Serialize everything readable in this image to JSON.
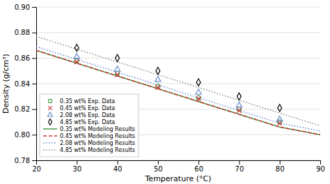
{
  "chart_data": {
    "type": "line",
    "xlabel": "Temperature (°C)",
    "ylabel": "Density (g/cm³)",
    "xlim": [
      20,
      90
    ],
    "ylim": [
      0.78,
      0.9
    ],
    "xticks": [
      20,
      30,
      40,
      50,
      60,
      70,
      80,
      90
    ],
    "yticks": [
      0.78,
      {
        "value": 0.8,
        "label": "0.80"
      },
      0.82,
      0.84,
      0.86,
      0.88,
      {
        "value": 0.9,
        "label": "0.90"
      }
    ],
    "grid": true,
    "legend": "lower left",
    "series": [
      {
        "name": "0.35 wt% Exp. Data",
        "type": "scatter",
        "marker": "circle",
        "color": "#4a9c4a",
        "x": [
          30,
          40,
          50,
          60,
          70,
          80
        ],
        "values": [
          0.858,
          0.848,
          0.838,
          0.829,
          0.82,
          0.81
        ]
      },
      {
        "name": "0.45 wt% Exp. Data",
        "type": "scatter",
        "marker": "x",
        "color": "#cc3333",
        "x": [
          30,
          40,
          50,
          60,
          70,
          80
        ],
        "values": [
          0.857,
          0.847,
          0.837,
          0.828,
          0.819,
          0.809
        ]
      },
      {
        "name": "2.08 wt% Exp. Data",
        "type": "scatter",
        "marker": "triangle",
        "color": "#6688cc",
        "x": [
          30,
          40,
          50,
          60,
          70,
          80
        ],
        "values": [
          0.861,
          0.851,
          0.843,
          0.833,
          0.823,
          0.812
        ]
      },
      {
        "name": "4.85 wt% Exp. Data",
        "type": "scatter",
        "marker": "diamond",
        "color": "#000000",
        "x": [
          30,
          40,
          50,
          60,
          70,
          80
        ],
        "values": [
          0.868,
          0.86,
          0.85,
          0.841,
          0.83,
          0.821
        ]
      },
      {
        "name": "0.35 wt% Modeling Results",
        "type": "line",
        "line_style": "solid",
        "color": "#4a9c4a",
        "x": [
          20,
          30,
          40,
          50,
          60,
          70,
          80,
          90
        ],
        "values": [
          0.866,
          0.856,
          0.846,
          0.836,
          0.826,
          0.816,
          0.806,
          0.8
        ]
      },
      {
        "name": "0.45 wt% Modeling Results",
        "type": "line",
        "line_style": "dashed",
        "color": "#cc3333",
        "x": [
          20,
          30,
          40,
          50,
          60,
          70,
          80,
          90
        ],
        "values": [
          0.866,
          0.856,
          0.846,
          0.836,
          0.826,
          0.816,
          0.806,
          0.8
        ]
      },
      {
        "name": "2.08 wt% Modeling Results",
        "type": "line",
        "line_style": "dotted",
        "color": "#6688cc",
        "x": [
          20,
          30,
          40,
          50,
          60,
          70,
          80,
          90
        ],
        "values": [
          0.869,
          0.859,
          0.849,
          0.839,
          0.829,
          0.819,
          0.809,
          0.803
        ]
      },
      {
        "name": "4.85 wt% Modeling Results",
        "type": "line",
        "line_style": "dotted",
        "color": "#888888",
        "x": [
          20,
          30,
          40,
          50,
          60,
          70,
          80,
          90
        ],
        "values": [
          0.877,
          0.867,
          0.857,
          0.847,
          0.837,
          0.827,
          0.817,
          0.807
        ]
      }
    ]
  }
}
